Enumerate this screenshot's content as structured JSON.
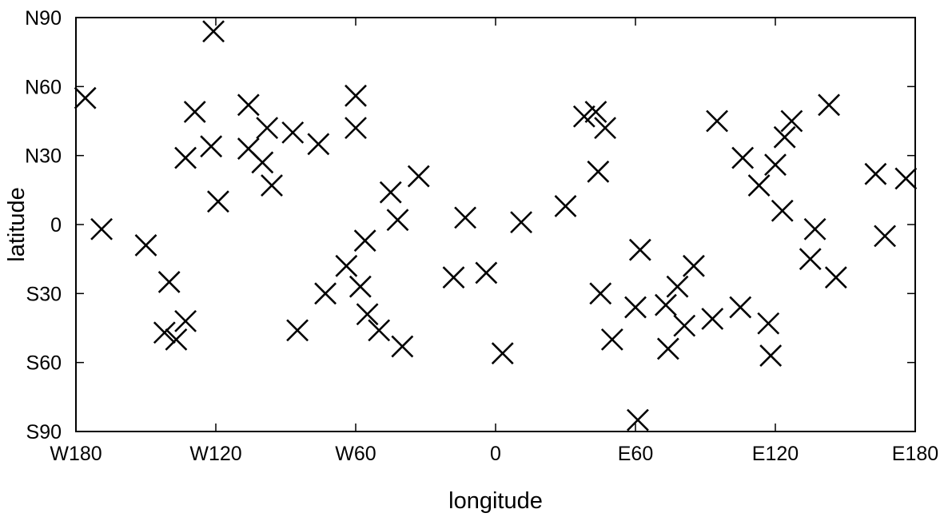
{
  "chart_data": {
    "type": "scatter",
    "title": "",
    "xlabel": "longitude",
    "ylabel": "latitude",
    "xlim": [
      -180,
      180
    ],
    "ylim": [
      -90,
      90
    ],
    "x_ticks": [
      {
        "value": -180,
        "label": "W180"
      },
      {
        "value": -120,
        "label": "W120"
      },
      {
        "value": -60,
        "label": "W60"
      },
      {
        "value": 0,
        "label": "0"
      },
      {
        "value": 60,
        "label": "E60"
      },
      {
        "value": 120,
        "label": "E120"
      },
      {
        "value": 180,
        "label": "E180"
      }
    ],
    "y_ticks": [
      {
        "value": 90,
        "label": "N90"
      },
      {
        "value": 60,
        "label": "N60"
      },
      {
        "value": 30,
        "label": "N30"
      },
      {
        "value": 0,
        "label": "0"
      },
      {
        "value": -30,
        "label": "S30"
      },
      {
        "value": -60,
        "label": "S60"
      },
      {
        "value": -90,
        "label": "S90"
      }
    ],
    "grid": false,
    "marker": "x",
    "marker_color": "#000000",
    "points": [
      {
        "x": -176,
        "y": 55
      },
      {
        "x": -169,
        "y": -2
      },
      {
        "x": -150,
        "y": -9
      },
      {
        "x": -140,
        "y": -25
      },
      {
        "x": -142,
        "y": -47
      },
      {
        "x": -137,
        "y": -50
      },
      {
        "x": -133,
        "y": -42
      },
      {
        "x": -133,
        "y": 29
      },
      {
        "x": -129,
        "y": 49
      },
      {
        "x": -121,
        "y": 84
      },
      {
        "x": -122,
        "y": 34
      },
      {
        "x": -119,
        "y": 10
      },
      {
        "x": -106,
        "y": 52
      },
      {
        "x": -106,
        "y": 33
      },
      {
        "x": -100,
        "y": 27
      },
      {
        "x": -98,
        "y": 42
      },
      {
        "x": -96,
        "y": 17
      },
      {
        "x": -87,
        "y": 40
      },
      {
        "x": -85,
        "y": -46
      },
      {
        "x": -76,
        "y": 35
      },
      {
        "x": -73,
        "y": -30
      },
      {
        "x": -64,
        "y": -18
      },
      {
        "x": -60,
        "y": 56
      },
      {
        "x": -60,
        "y": 42
      },
      {
        "x": -58,
        "y": -27
      },
      {
        "x": -56,
        "y": -7
      },
      {
        "x": -55,
        "y": -39
      },
      {
        "x": -50,
        "y": -46
      },
      {
        "x": -45,
        "y": 14
      },
      {
        "x": -42,
        "y": 2
      },
      {
        "x": -40,
        "y": -53
      },
      {
        "x": -33,
        "y": 21
      },
      {
        "x": -18,
        "y": -23
      },
      {
        "x": -13,
        "y": 3
      },
      {
        "x": -4,
        "y": -21
      },
      {
        "x": 3,
        "y": -56
      },
      {
        "x": 11,
        "y": 1
      },
      {
        "x": 30,
        "y": 8
      },
      {
        "x": 38,
        "y": 47
      },
      {
        "x": 43,
        "y": 49
      },
      {
        "x": 44,
        "y": 23
      },
      {
        "x": 45,
        "y": -30
      },
      {
        "x": 47,
        "y": 42
      },
      {
        "x": 50,
        "y": -50
      },
      {
        "x": 60,
        "y": -36
      },
      {
        "x": 61,
        "y": -85
      },
      {
        "x": 62,
        "y": -11
      },
      {
        "x": 73,
        "y": -35
      },
      {
        "x": 74,
        "y": -54
      },
      {
        "x": 78,
        "y": -27
      },
      {
        "x": 81,
        "y": -44
      },
      {
        "x": 85,
        "y": -18
      },
      {
        "x": 93,
        "y": -41
      },
      {
        "x": 95,
        "y": 45
      },
      {
        "x": 105,
        "y": -36
      },
      {
        "x": 106,
        "y": 29
      },
      {
        "x": 113,
        "y": 17
      },
      {
        "x": 117,
        "y": -43
      },
      {
        "x": 118,
        "y": -57
      },
      {
        "x": 120,
        "y": 26
      },
      {
        "x": 123,
        "y": 6
      },
      {
        "x": 124,
        "y": 38
      },
      {
        "x": 127,
        "y": 45
      },
      {
        "x": 135,
        "y": -15
      },
      {
        "x": 137,
        "y": -2
      },
      {
        "x": 143,
        "y": 52
      },
      {
        "x": 146,
        "y": -23
      },
      {
        "x": 163,
        "y": 22
      },
      {
        "x": 167,
        "y": -5
      },
      {
        "x": 176,
        "y": 20
      }
    ]
  }
}
